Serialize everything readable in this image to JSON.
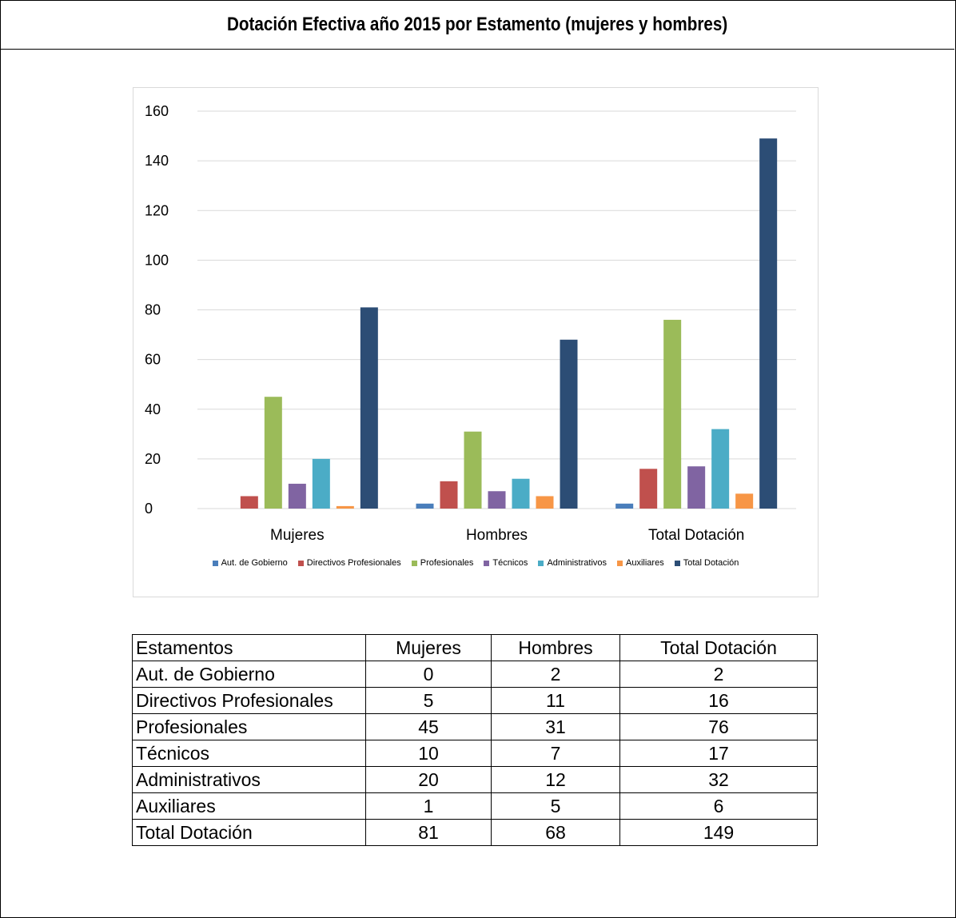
{
  "page_title": "Dotación Efectiva año 2015 por Estamento (mujeres y hombres)",
  "chart_data": {
    "type": "bar",
    "title": "",
    "xlabel": "",
    "ylabel": "",
    "ylim": [
      0,
      160
    ],
    "yticks": [
      0,
      20,
      40,
      60,
      80,
      100,
      120,
      140,
      160
    ],
    "grid": true,
    "legend_position": "bottom",
    "categories": [
      "Mujeres",
      "Hombres",
      "Total Dotación"
    ],
    "series": [
      {
        "name": "Aut. de Gobierno",
        "color": "#4a7ebb",
        "values": [
          0,
          2,
          2
        ]
      },
      {
        "name": "Directivos Profesionales",
        "color": "#c0504d",
        "values": [
          5,
          11,
          16
        ]
      },
      {
        "name": "Profesionales",
        "color": "#9bbb59",
        "values": [
          45,
          31,
          76
        ]
      },
      {
        "name": "Técnicos",
        "color": "#8064a2",
        "values": [
          10,
          7,
          17
        ]
      },
      {
        "name": "Administrativos",
        "color": "#4bacc6",
        "values": [
          20,
          12,
          32
        ]
      },
      {
        "name": "Auxiliares",
        "color": "#f79646",
        "values": [
          1,
          5,
          6
        ]
      },
      {
        "name": "Total Dotación",
        "color": "#2c4d75",
        "values": [
          81,
          68,
          149
        ]
      }
    ]
  },
  "table": {
    "headers": [
      "Estamentos",
      "Mujeres",
      "Hombres",
      "Total Dotación"
    ],
    "rows": [
      [
        "Aut. de Gobierno",
        "0",
        "2",
        "2"
      ],
      [
        "Directivos Profesionales",
        "5",
        "11",
        "16"
      ],
      [
        "Profesionales",
        "45",
        "31",
        "76"
      ],
      [
        "Técnicos",
        "10",
        "7",
        "17"
      ],
      [
        "Administrativos",
        "20",
        "12",
        "32"
      ],
      [
        "Auxiliares",
        "1",
        "5",
        "6"
      ],
      [
        "Total Dotación",
        "81",
        "68",
        "149"
      ]
    ]
  }
}
